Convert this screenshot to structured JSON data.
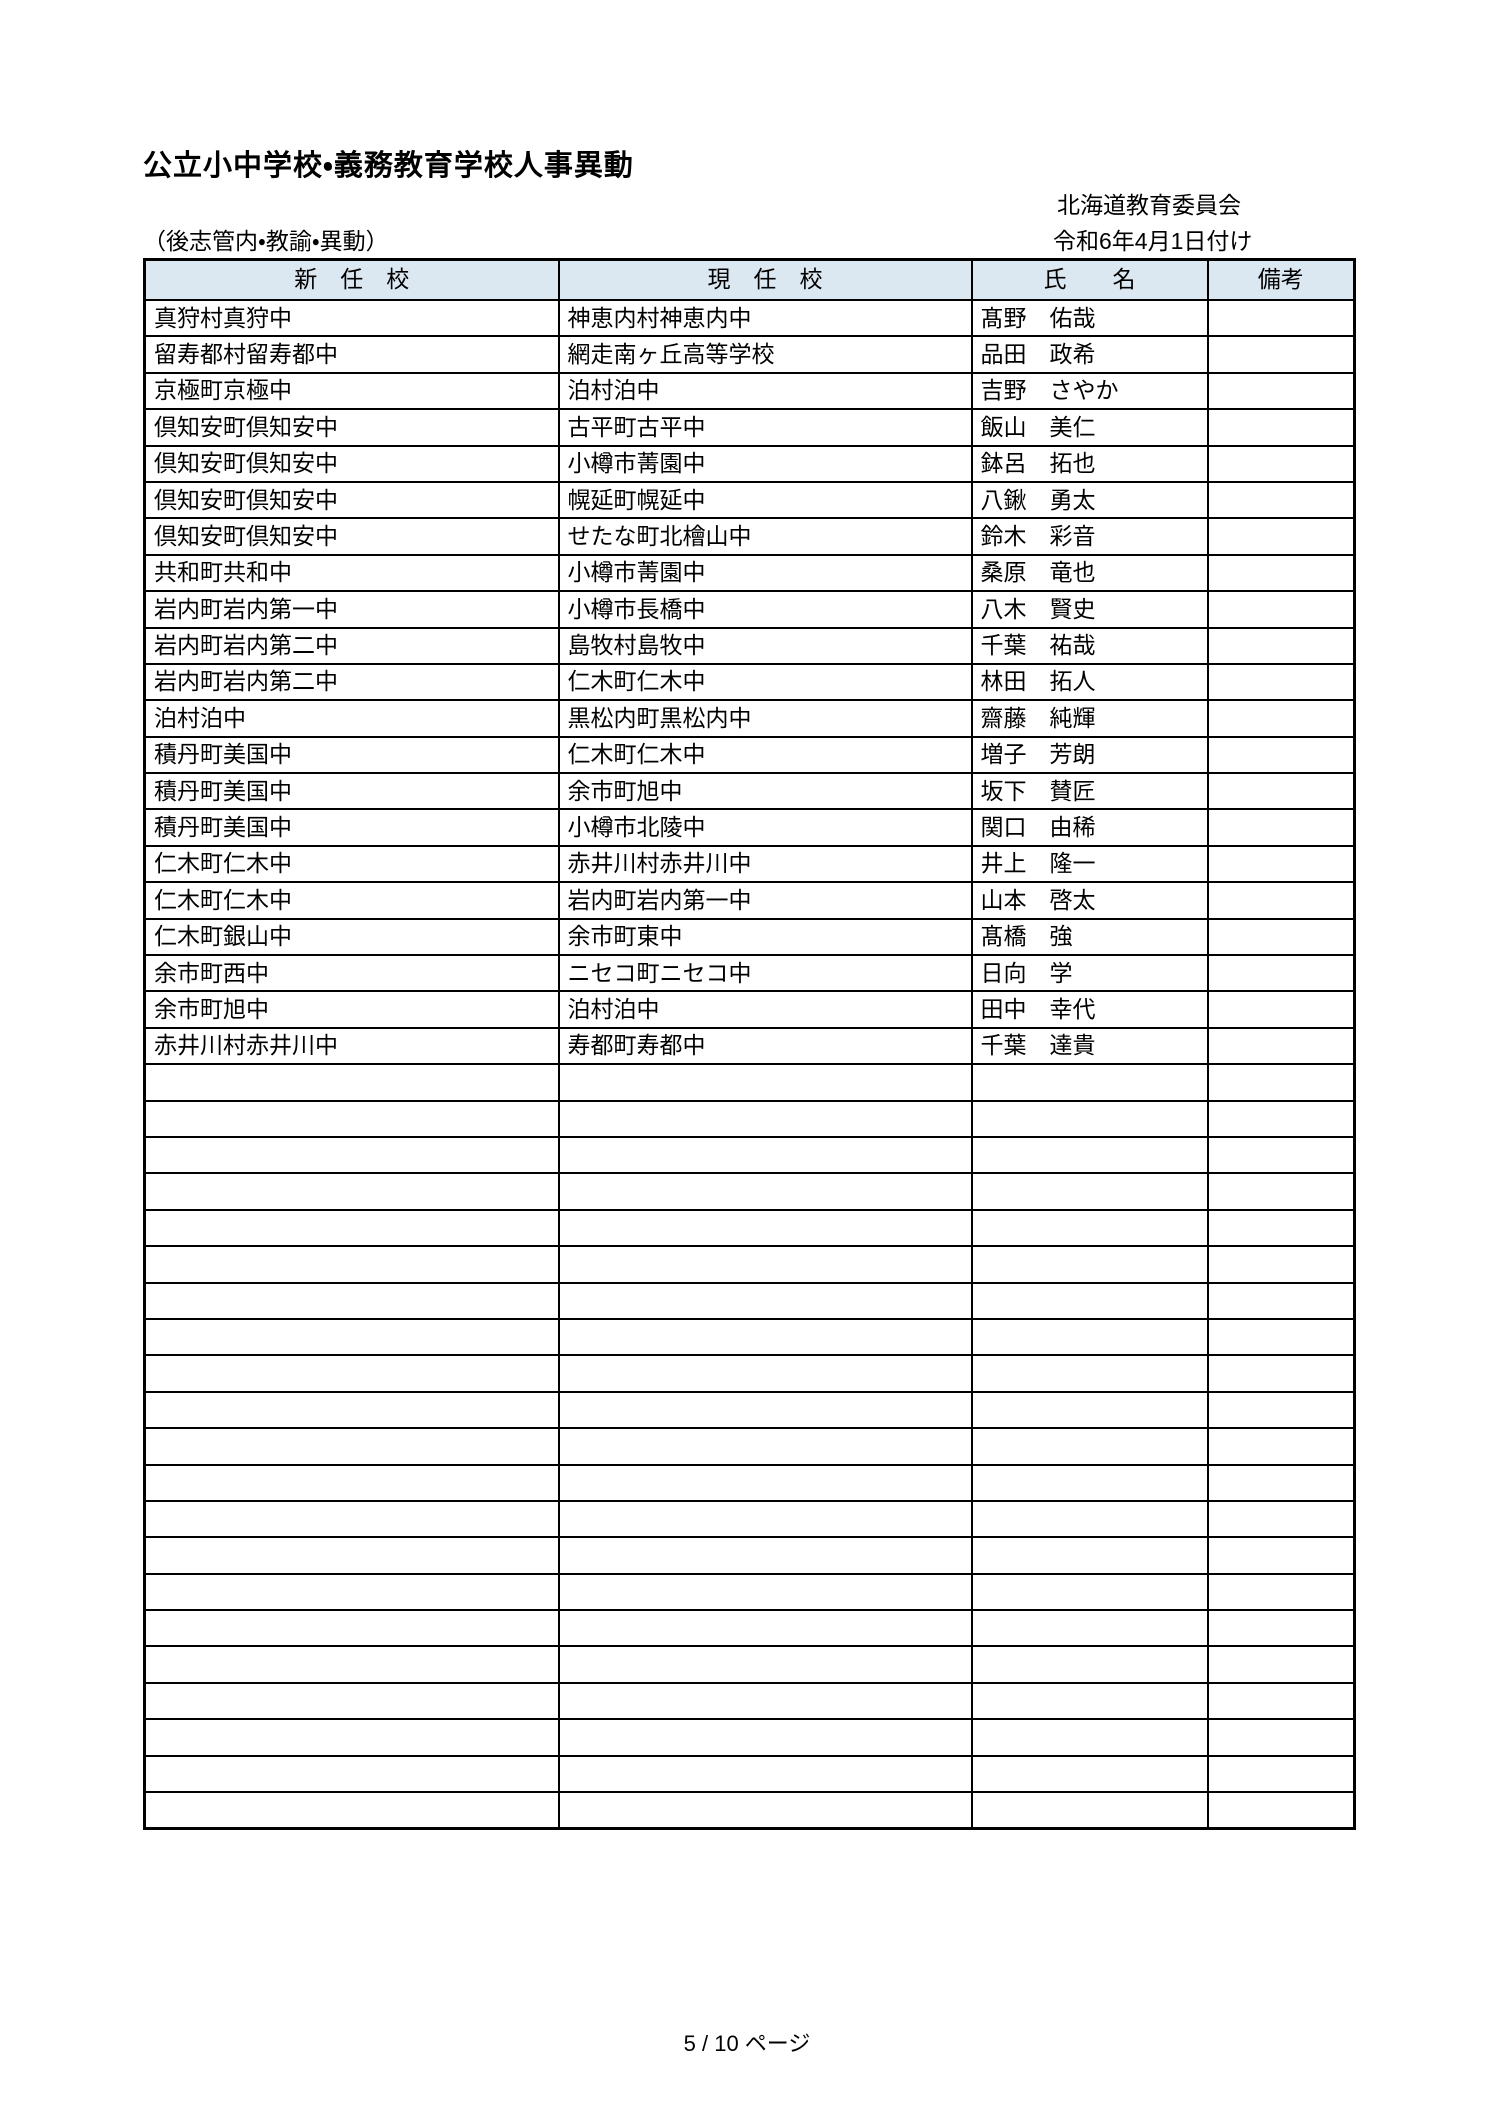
{
  "page": {
    "title": "公立小中学校・義務教育学校人事異動",
    "organization": "北海道教育委員会",
    "scope_note": "（後志管内・教諭・異動）",
    "effective_date": "令和6年4月1日付け",
    "page_footer": "5 / 10 ページ"
  },
  "colors": {
    "header_bg": "#dbe8f2",
    "border": "#000000"
  },
  "table": {
    "columns": [
      "新　任　校",
      "現　任　校",
      "氏　　名",
      "備考"
    ],
    "rows": [
      {
        "new_school": "真狩村真狩中",
        "current_school": "神恵内村神恵内中",
        "name": "髙野　佑哉",
        "remarks": ""
      },
      {
        "new_school": "留寿都村留寿都中",
        "current_school": "網走南ヶ丘高等学校",
        "name": "品田　政希",
        "remarks": ""
      },
      {
        "new_school": "京極町京極中",
        "current_school": "泊村泊中",
        "name": "吉野　さやか",
        "remarks": ""
      },
      {
        "new_school": "倶知安町倶知安中",
        "current_school": "古平町古平中",
        "name": "飯山　美仁",
        "remarks": ""
      },
      {
        "new_school": "倶知安町倶知安中",
        "current_school": "小樽市菁園中",
        "name": "鉢呂　拓也",
        "remarks": ""
      },
      {
        "new_school": "倶知安町倶知安中",
        "current_school": "幌延町幌延中",
        "name": "八鍬　勇太",
        "remarks": ""
      },
      {
        "new_school": "倶知安町倶知安中",
        "current_school": "せたな町北檜山中",
        "name": "鈴木　彩音",
        "remarks": ""
      },
      {
        "new_school": "共和町共和中",
        "current_school": "小樽市菁園中",
        "name": "桑原　竜也",
        "remarks": ""
      },
      {
        "new_school": "岩内町岩内第一中",
        "current_school": "小樽市長橋中",
        "name": "八木　賢史",
        "remarks": ""
      },
      {
        "new_school": "岩内町岩内第二中",
        "current_school": "島牧村島牧中",
        "name": "千葉　祐哉",
        "remarks": ""
      },
      {
        "new_school": "岩内町岩内第二中",
        "current_school": "仁木町仁木中",
        "name": "林田　拓人",
        "remarks": ""
      },
      {
        "new_school": "泊村泊中",
        "current_school": "黒松内町黒松内中",
        "name": "齋藤　純輝",
        "remarks": ""
      },
      {
        "new_school": "積丹町美国中",
        "current_school": "仁木町仁木中",
        "name": "増子　芳朗",
        "remarks": ""
      },
      {
        "new_school": "積丹町美国中",
        "current_school": "余市町旭中",
        "name": "坂下　賛匠",
        "remarks": ""
      },
      {
        "new_school": "積丹町美国中",
        "current_school": "小樽市北陵中",
        "name": "関口　由稀",
        "remarks": ""
      },
      {
        "new_school": "仁木町仁木中",
        "current_school": "赤井川村赤井川中",
        "name": "井上　隆一",
        "remarks": ""
      },
      {
        "new_school": "仁木町仁木中",
        "current_school": "岩内町岩内第一中",
        "name": "山本　啓太",
        "remarks": ""
      },
      {
        "new_school": "仁木町銀山中",
        "current_school": "余市町東中",
        "name": "髙橋　強",
        "remarks": ""
      },
      {
        "new_school": "余市町西中",
        "current_school": "ニセコ町ニセコ中",
        "name": "日向　学",
        "remarks": ""
      },
      {
        "new_school": "余市町旭中",
        "current_school": "泊村泊中",
        "name": "田中　幸代",
        "remarks": ""
      },
      {
        "new_school": "赤井川村赤井川中",
        "current_school": "寿都町寿都中",
        "name": "千葉　達貴",
        "remarks": ""
      }
    ],
    "empty_row_count": 21
  }
}
